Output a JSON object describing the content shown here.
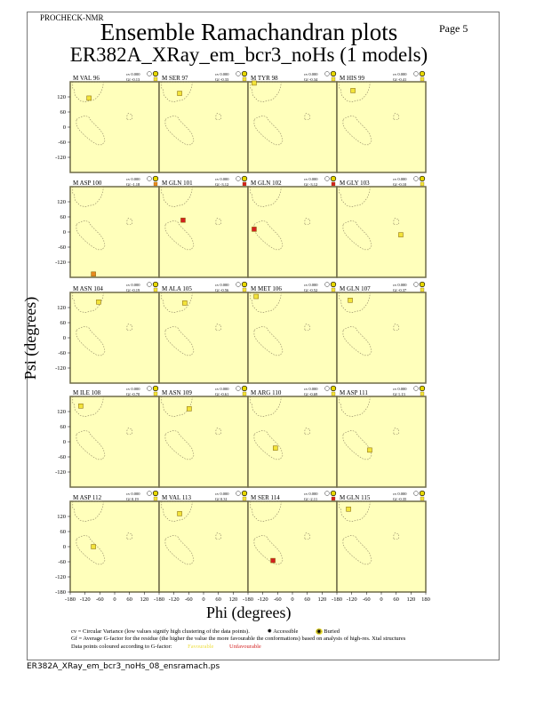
{
  "header": {
    "program": "PROCHECK-NMR",
    "page": "Page  5",
    "title": "Ensemble Ramachandran plots",
    "subtitle": "ER382A_XRay_em_bcr3_noHs (1 models)"
  },
  "colors": {
    "panel_bg": "#ffffbb",
    "favourable": "#f2e33a",
    "intermediate": "#e8891e",
    "unfavourable": "#d42020",
    "region_outline": "#8a8060",
    "panel_border": "#6e6a48"
  },
  "chart_data": {
    "type": "scatter",
    "xlabel": "Phi (degrees)",
    "ylabel": "Psi (degrees)",
    "xlim": [
      -180,
      180
    ],
    "ylim": [
      -180,
      180
    ],
    "xticks": [
      -180,
      -120,
      -60,
      0,
      60,
      120,
      180
    ],
    "yticks": [
      -180,
      -120,
      -60,
      0,
      60,
      120
    ],
    "panels": [
      {
        "label": "M VAL 96",
        "cv": "cv 0.000",
        "gf": "Gf -0.13",
        "phi": -104,
        "psi": 115,
        "color": "favourable"
      },
      {
        "label": "M SER 97",
        "cv": "cv 0.000",
        "gf": "Gf -0.33",
        "phi": -97,
        "psi": 134,
        "color": "favourable"
      },
      {
        "label": "M TYR 98",
        "cv": "cv 0.000",
        "gf": "Gf -0.34",
        "phi": -155,
        "psi": 175,
        "color": "favourable"
      },
      {
        "label": "M HIS 99",
        "cv": "cv 0.000",
        "gf": "Gf -0.41",
        "phi": -115,
        "psi": 145,
        "color": "favourable"
      },
      {
        "label": "M ASP 100",
        "cv": "cv 0.000",
        "gf": "Gf -1.18",
        "phi": -86,
        "psi": -167,
        "color": "intermediate"
      },
      {
        "label": "M GLN 101",
        "cv": "cv 0.000",
        "gf": "Gf -3.12",
        "phi": -83,
        "psi": 47,
        "color": "unfavourable"
      },
      {
        "label": "M GLN 102",
        "cv": "cv 0.000",
        "gf": "Gf -3.12",
        "phi": -155,
        "psi": 11,
        "color": "unfavourable"
      },
      {
        "label": "M GLY 103",
        "cv": "cv 0.000",
        "gf": "Gf -0.10",
        "phi": 79,
        "psi": -11,
        "color": "favourable"
      },
      {
        "label": "M ASN 104",
        "cv": "cv 0.000",
        "gf": "Gf -0.19",
        "phi": -65,
        "psi": 142,
        "color": "favourable"
      },
      {
        "label": "M ALA 105",
        "cv": "cv 0.000",
        "gf": "Gf -0.56",
        "phi": -76,
        "psi": 138,
        "color": "favourable"
      },
      {
        "label": "M MET 106",
        "cv": "cv 0.000",
        "gf": "Gf -0.52",
        "phi": -147,
        "psi": 164,
        "color": "favourable"
      },
      {
        "label": "M GLN 107",
        "cv": "cv 0.000",
        "gf": "Gf -0.37",
        "phi": -126,
        "psi": 149,
        "color": "favourable"
      },
      {
        "label": "M ILE 108",
        "cv": "cv 0.000",
        "gf": "Gf -0.70",
        "phi": -137,
        "psi": 142,
        "color": "favourable"
      },
      {
        "label": "M ASN 109",
        "cv": "cv 0.000",
        "gf": "Gf -0.61",
        "phi": -58,
        "psi": 131,
        "color": "favourable"
      },
      {
        "label": "M ARG 110",
        "cv": "cv 0.000",
        "gf": "Gf -0.69",
        "phi": -69,
        "psi": -25,
        "color": "favourable"
      },
      {
        "label": "M ASP 111",
        "cv": "cv 0.000",
        "gf": "Gf 1.13",
        "phi": -47,
        "psi": -33,
        "color": "favourable"
      },
      {
        "label": "M ASP 112",
        "cv": "cv 0.000",
        "gf": "Gf 0.19",
        "phi": -86,
        "psi": 0,
        "color": "favourable"
      },
      {
        "label": "M VAL 113",
        "cv": "cv 0.000",
        "gf": "Gf 0.31",
        "phi": -97,
        "psi": 131,
        "color": "favourable"
      },
      {
        "label": "M SER 114",
        "cv": "cv 0.000",
        "gf": "Gf -2.11",
        "phi": -79,
        "psi": -55,
        "color": "unfavourable"
      },
      {
        "label": "M GLN 115",
        "cv": "cv 0.000",
        "gf": "Gf -0.35",
        "phi": -133,
        "psi": 149,
        "color": "favourable"
      }
    ]
  },
  "legend": {
    "cv_text": "cv = Circular Variance (low values signify high clustering of the data points).",
    "accessible": "Accessible",
    "buried": "Buried",
    "gf_text": "Gf = Average G-factor for the residue (the higher the value the more favourable the conformations) based on analysis of high-res. Xtal structures",
    "colour_text": "Data points coloured according to G-factor:",
    "favourable": "Favourable",
    "unfavourable": "Unfavourable"
  },
  "footer": "ER382A_XRay_em_bcr3_noHs_08_ensramach.ps"
}
